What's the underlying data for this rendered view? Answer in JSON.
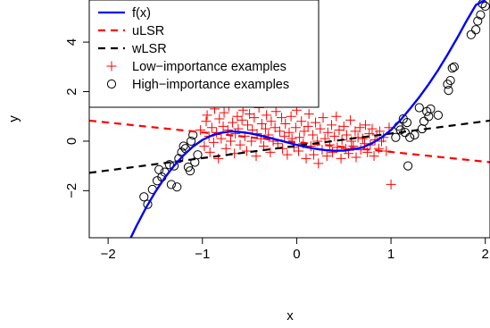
{
  "chart_data": {
    "type": "scatter",
    "title": "",
    "xlabel": "x",
    "ylabel": "y",
    "xlim": [
      -2.2,
      2.05
    ],
    "ylim": [
      -3.9,
      5.7
    ],
    "xticks": [
      -2,
      -1,
      0,
      1,
      2
    ],
    "yticks": [
      -2,
      0,
      2,
      4
    ],
    "xtick_labels": [
      "−2",
      "−1",
      "0",
      "1",
      "2"
    ],
    "ytick_labels": [
      "−2",
      "0",
      "2",
      "4"
    ],
    "grid": false,
    "legend_position": "top-left",
    "legend": [
      {
        "label": "f(x)",
        "kind": "line",
        "color": "#0000ff",
        "dash": "solid"
      },
      {
        "label": "uLSR",
        "kind": "line",
        "color": "#ff0000",
        "dash": "dashed"
      },
      {
        "label": "wLSR",
        "kind": "line",
        "color": "#000000",
        "dash": "dashed"
      },
      {
        "label": "Low−importance examples",
        "kind": "plus",
        "color": "#ff0000"
      },
      {
        "label": "High−importance examples",
        "kind": "circle",
        "color": "#000000"
      }
    ],
    "series": [
      {
        "name": "f(x)",
        "kind": "curve",
        "color": "#0000ff",
        "x": [
          -1.76,
          -1.7,
          -1.6,
          -1.5,
          -1.4,
          -1.3,
          -1.2,
          -1.1,
          -1.0,
          -0.9,
          -0.8,
          -0.7,
          -0.6,
          -0.5,
          -0.4,
          -0.3,
          -0.2,
          -0.1,
          0.0,
          0.1,
          0.2,
          0.3,
          0.4,
          0.5,
          0.6,
          0.7,
          0.8,
          0.9,
          1.0,
          1.1,
          1.2,
          1.3,
          1.4,
          1.5,
          1.6,
          1.7,
          1.8,
          1.9,
          2.0
        ],
        "y": [
          -3.9,
          -3.43,
          -2.7,
          -2.05,
          -1.48,
          -0.99,
          -0.57,
          -0.22,
          0.05,
          0.23,
          0.34,
          0.39,
          0.37,
          0.32,
          0.24,
          0.15,
          0.05,
          -0.05,
          -0.15,
          -0.24,
          -0.31,
          -0.36,
          -0.39,
          -0.38,
          -0.33,
          -0.25,
          -0.08,
          0.15,
          0.45,
          0.85,
          1.3,
          1.78,
          2.3,
          2.87,
          3.5,
          4.15,
          4.85,
          5.5,
          5.7
        ]
      },
      {
        "name": "uLSR",
        "kind": "line",
        "color": "#ff0000",
        "dash": "dashed",
        "x": [
          -2.2,
          2.05
        ],
        "y": [
          0.83,
          -0.85
        ]
      },
      {
        "name": "wLSR",
        "kind": "line",
        "color": "#000000",
        "dash": "dashed",
        "x": [
          -2.2,
          2.05
        ],
        "y": [
          -1.28,
          0.83
        ]
      },
      {
        "name": "High−importance examples",
        "kind": "circle",
        "color": "#000000",
        "points": [
          [
            -1.62,
            -2.25
          ],
          [
            -1.58,
            -2.55
          ],
          [
            -1.53,
            -1.95
          ],
          [
            -1.48,
            -1.6
          ],
          [
            -1.46,
            -1.15
          ],
          [
            -1.43,
            -1.45
          ],
          [
            -1.4,
            -1.25
          ],
          [
            -1.35,
            -0.95
          ],
          [
            -1.33,
            -1.75
          ],
          [
            -1.3,
            -1.0
          ],
          [
            -1.27,
            -1.85
          ],
          [
            -1.25,
            -0.7
          ],
          [
            -1.22,
            -0.45
          ],
          [
            -1.2,
            -0.2
          ],
          [
            -1.18,
            -0.3
          ],
          [
            -1.15,
            -1.05
          ],
          [
            -1.13,
            -1.2
          ],
          [
            -1.12,
            0.0
          ],
          [
            -1.1,
            0.25
          ],
          [
            -1.08,
            -0.85
          ],
          [
            -1.05,
            -0.55
          ],
          [
            1.05,
            0.15
          ],
          [
            1.08,
            0.6
          ],
          [
            1.1,
            0.45
          ],
          [
            1.13,
            0.9
          ],
          [
            1.15,
            0.35
          ],
          [
            1.17,
            0.75
          ],
          [
            1.18,
            -1.0
          ],
          [
            1.2,
            0.15
          ],
          [
            1.25,
            0.25
          ],
          [
            1.3,
            1.35
          ],
          [
            1.33,
            0.5
          ],
          [
            1.35,
            0.8
          ],
          [
            1.38,
            1.2
          ],
          [
            1.4,
            1.0
          ],
          [
            1.42,
            1.3
          ],
          [
            1.5,
            1.05
          ],
          [
            1.6,
            2.3
          ],
          [
            1.61,
            2.05
          ],
          [
            1.63,
            2.45
          ],
          [
            1.65,
            2.95
          ],
          [
            1.67,
            3.0
          ],
          [
            1.85,
            4.3
          ],
          [
            1.9,
            4.5
          ],
          [
            1.92,
            4.85
          ],
          [
            1.95,
            5.1
          ],
          [
            1.97,
            5.55
          ],
          [
            2.0,
            5.45
          ]
        ]
      },
      {
        "name": "Low−importance examples",
        "kind": "plus",
        "color": "#ff0000",
        "points": [
          [
            -1.02,
            0.45
          ],
          [
            -0.98,
            -0.2
          ],
          [
            -0.96,
            0.8
          ],
          [
            -0.95,
            1.05
          ],
          [
            -0.93,
            0.2
          ],
          [
            -0.92,
            -0.45
          ],
          [
            -0.9,
            0.55
          ],
          [
            -0.88,
            -0.05
          ],
          [
            -0.87,
            1.3
          ],
          [
            -0.85,
            0.35
          ],
          [
            -0.83,
            -0.7
          ],
          [
            -0.82,
            0.9
          ],
          [
            -0.8,
            0.1
          ],
          [
            -0.78,
            0.6
          ],
          [
            -0.77,
            1.15
          ],
          [
            -0.75,
            -0.3
          ],
          [
            -0.73,
            0.45
          ],
          [
            -0.72,
            1.4
          ],
          [
            -0.7,
            0.0
          ],
          [
            -0.68,
            0.75
          ],
          [
            -0.66,
            -0.5
          ],
          [
            -0.65,
            0.3
          ],
          [
            -0.63,
            1.0
          ],
          [
            -0.62,
            0.5
          ],
          [
            -0.6,
            -0.15
          ],
          [
            -0.58,
            0.85
          ],
          [
            -0.57,
            1.25
          ],
          [
            -0.55,
            0.2
          ],
          [
            -0.53,
            -0.4
          ],
          [
            -0.52,
            0.65
          ],
          [
            -0.5,
            1.1
          ],
          [
            -0.48,
            0.0
          ],
          [
            -0.47,
            0.45
          ],
          [
            -0.45,
            0.95
          ],
          [
            -0.43,
            -0.6
          ],
          [
            -0.42,
            0.3
          ],
          [
            -0.4,
            1.35
          ],
          [
            -0.38,
            0.1
          ],
          [
            -0.37,
            0.7
          ],
          [
            -0.35,
            -0.2
          ],
          [
            -0.33,
            0.5
          ],
          [
            -0.32,
            1.05
          ],
          [
            -0.3,
            0.25
          ],
          [
            -0.28,
            -0.45
          ],
          [
            -0.27,
            0.8
          ],
          [
            -0.25,
            0.0
          ],
          [
            -0.23,
            0.55
          ],
          [
            -0.22,
            1.2
          ],
          [
            -0.2,
            -0.1
          ],
          [
            -0.18,
            0.4
          ],
          [
            -0.16,
            0.95
          ],
          [
            -0.15,
            -0.3
          ],
          [
            -0.13,
            0.2
          ],
          [
            -0.12,
            0.7
          ],
          [
            -0.1,
            -0.55
          ],
          [
            -0.08,
            0.35
          ],
          [
            -0.06,
            1.0
          ],
          [
            -0.05,
            0.1
          ],
          [
            -0.03,
            -0.25
          ],
          [
            -0.01,
            0.55
          ],
          [
            0.0,
            1.25
          ],
          [
            0.02,
            -0.4
          ],
          [
            0.03,
            0.15
          ],
          [
            0.05,
            0.8
          ],
          [
            0.07,
            -0.1
          ],
          [
            0.08,
            0.4
          ],
          [
            0.1,
            -0.7
          ],
          [
            0.12,
            0.6
          ],
          [
            0.13,
            1.1
          ],
          [
            0.15,
            -0.2
          ],
          [
            0.17,
            0.25
          ],
          [
            0.18,
            -0.55
          ],
          [
            0.2,
            0.75
          ],
          [
            0.22,
            0.0
          ],
          [
            0.23,
            -0.9
          ],
          [
            0.25,
            0.5
          ],
          [
            0.27,
            -0.35
          ],
          [
            0.28,
            0.95
          ],
          [
            0.3,
            0.1
          ],
          [
            0.32,
            -0.6
          ],
          [
            0.33,
            0.35
          ],
          [
            0.35,
            -0.15
          ],
          [
            0.37,
            0.65
          ],
          [
            0.38,
            -0.45
          ],
          [
            0.4,
            0.2
          ],
          [
            0.42,
            1.0
          ],
          [
            0.43,
            -0.25
          ],
          [
            0.45,
            0.45
          ],
          [
            0.47,
            -0.7
          ],
          [
            0.48,
            0.05
          ],
          [
            0.5,
            0.6
          ],
          [
            0.52,
            -0.3
          ],
          [
            0.53,
            0.25
          ],
          [
            0.55,
            -0.5
          ],
          [
            0.57,
            0.85
          ],
          [
            0.58,
            0.0
          ],
          [
            0.6,
            -0.2
          ],
          [
            0.62,
            0.4
          ],
          [
            0.63,
            -0.65
          ],
          [
            0.65,
            0.15
          ],
          [
            0.67,
            0.55
          ],
          [
            0.68,
            -0.35
          ],
          [
            0.7,
            0.1
          ],
          [
            0.72,
            -0.1
          ],
          [
            0.73,
            0.65
          ],
          [
            0.75,
            -0.45
          ],
          [
            0.77,
            0.3
          ],
          [
            0.78,
            -0.15
          ],
          [
            0.8,
            0.5
          ],
          [
            0.82,
            -0.6
          ],
          [
            0.83,
            0.05
          ],
          [
            0.85,
            0.25
          ],
          [
            0.87,
            -0.3
          ],
          [
            0.88,
            0.4
          ],
          [
            0.9,
            0.0
          ],
          [
            0.92,
            0.15
          ],
          [
            0.95,
            -0.4
          ],
          [
            0.98,
            0.55
          ],
          [
            1.0,
            -1.75
          ]
        ]
      }
    ]
  }
}
